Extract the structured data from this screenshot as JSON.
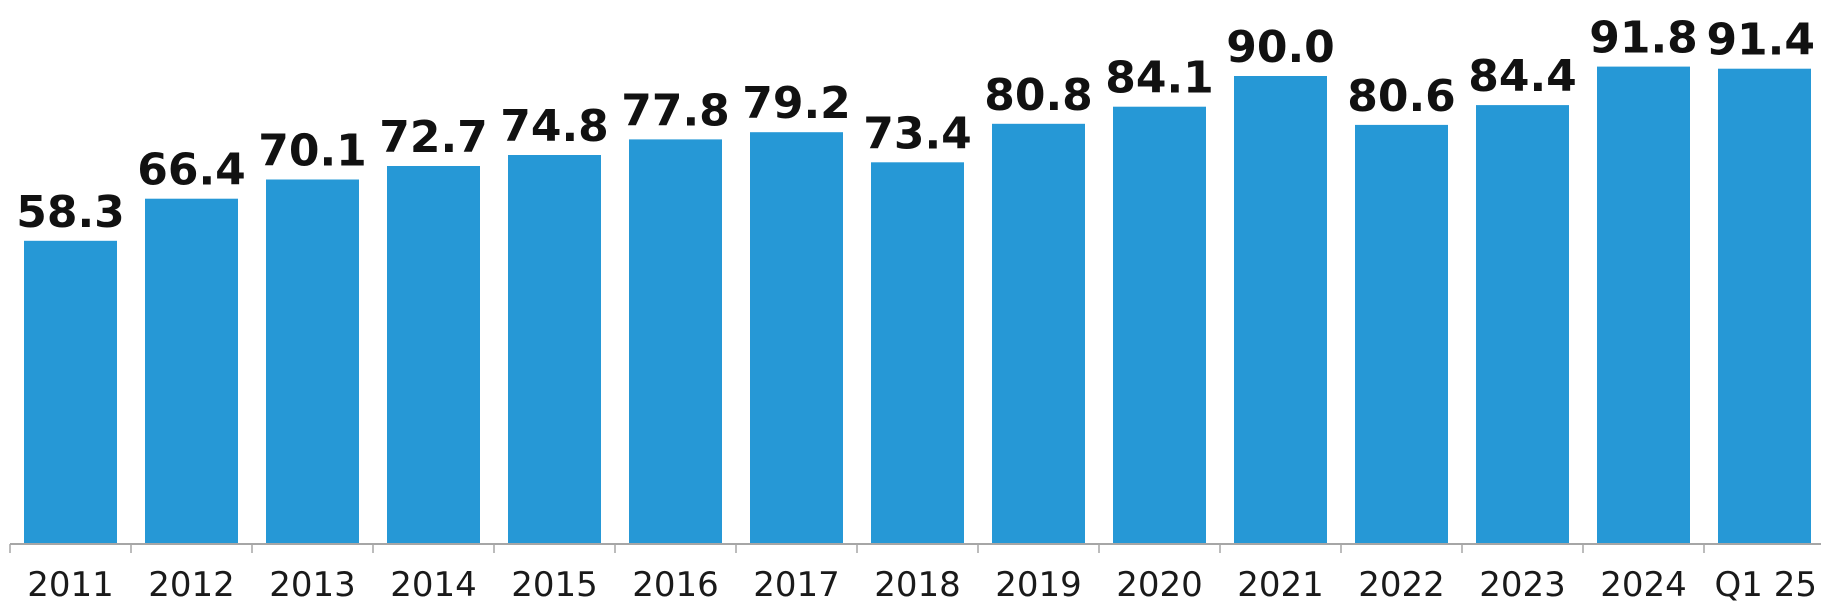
{
  "chart_data": {
    "type": "bar",
    "categories": [
      "2011",
      "2012",
      "2013",
      "2014",
      "2015",
      "2016",
      "2017",
      "2018",
      "2019",
      "2020",
      "2021",
      "2022",
      "2023",
      "2024",
      "Q1 25"
    ],
    "values": [
      58.3,
      66.4,
      70.1,
      72.7,
      74.8,
      77.8,
      79.2,
      73.4,
      80.8,
      84.1,
      90.0,
      80.6,
      84.4,
      91.8,
      91.4
    ],
    "value_labels": [
      "58.3",
      "66.4",
      "70.1",
      "72.7",
      "74.8",
      "77.8",
      "79.2",
      "73.4",
      "80.8",
      "84.1",
      "90.0",
      "80.6",
      "84.4",
      "91.8",
      "91.4"
    ],
    "title": "",
    "xlabel": "",
    "ylabel": "",
    "ylim": [
      0,
      100
    ],
    "grid": false,
    "legend": "none",
    "colors": {
      "bar": "#2698d6",
      "axis": "#a6a6a6",
      "value_label": "#111111",
      "tick_label": "#1a1a1a"
    }
  }
}
